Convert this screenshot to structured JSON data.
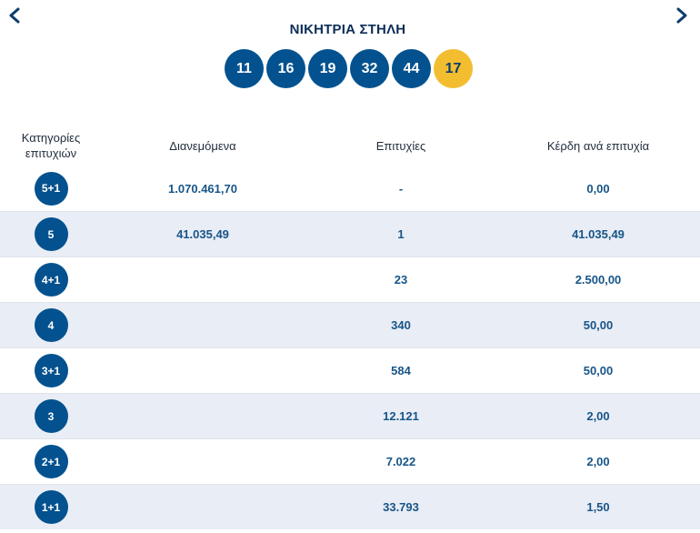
{
  "title": "ΝΙΚΗΤΡΙΑ ΣΤΗΛΗ",
  "winning_numbers": [
    "11",
    "16",
    "19",
    "32",
    "44"
  ],
  "bonus_number": "17",
  "colors": {
    "ball": "#03528f",
    "bonus": "#f3bd30",
    "text_blue": "#175588",
    "row_shade": "#e9edf5"
  },
  "table": {
    "headers": {
      "category": "Κατηγορίες επιτυχιών",
      "distributed": "Διανεμόμενα",
      "winners": "Επιτυχίες",
      "prize": "Κέρδη ανά επιτυχία"
    },
    "rows": [
      {
        "category": "5+1",
        "distributed": "1.070.461,70",
        "winners": "-",
        "prize": "0,00"
      },
      {
        "category": "5",
        "distributed": "41.035,49",
        "winners": "1",
        "prize": "41.035,49"
      },
      {
        "category": "4+1",
        "distributed": "",
        "winners": "23",
        "prize": "2.500,00"
      },
      {
        "category": "4",
        "distributed": "",
        "winners": "340",
        "prize": "50,00"
      },
      {
        "category": "3+1",
        "distributed": "",
        "winners": "584",
        "prize": "50,00"
      },
      {
        "category": "3",
        "distributed": "",
        "winners": "12.121",
        "prize": "2,00"
      },
      {
        "category": "2+1",
        "distributed": "",
        "winners": "7.022",
        "prize": "2,00"
      },
      {
        "category": "1+1",
        "distributed": "",
        "winners": "33.793",
        "prize": "1,50"
      }
    ]
  },
  "icons": {
    "prev": "chevron-left-icon",
    "next": "chevron-right-icon"
  }
}
